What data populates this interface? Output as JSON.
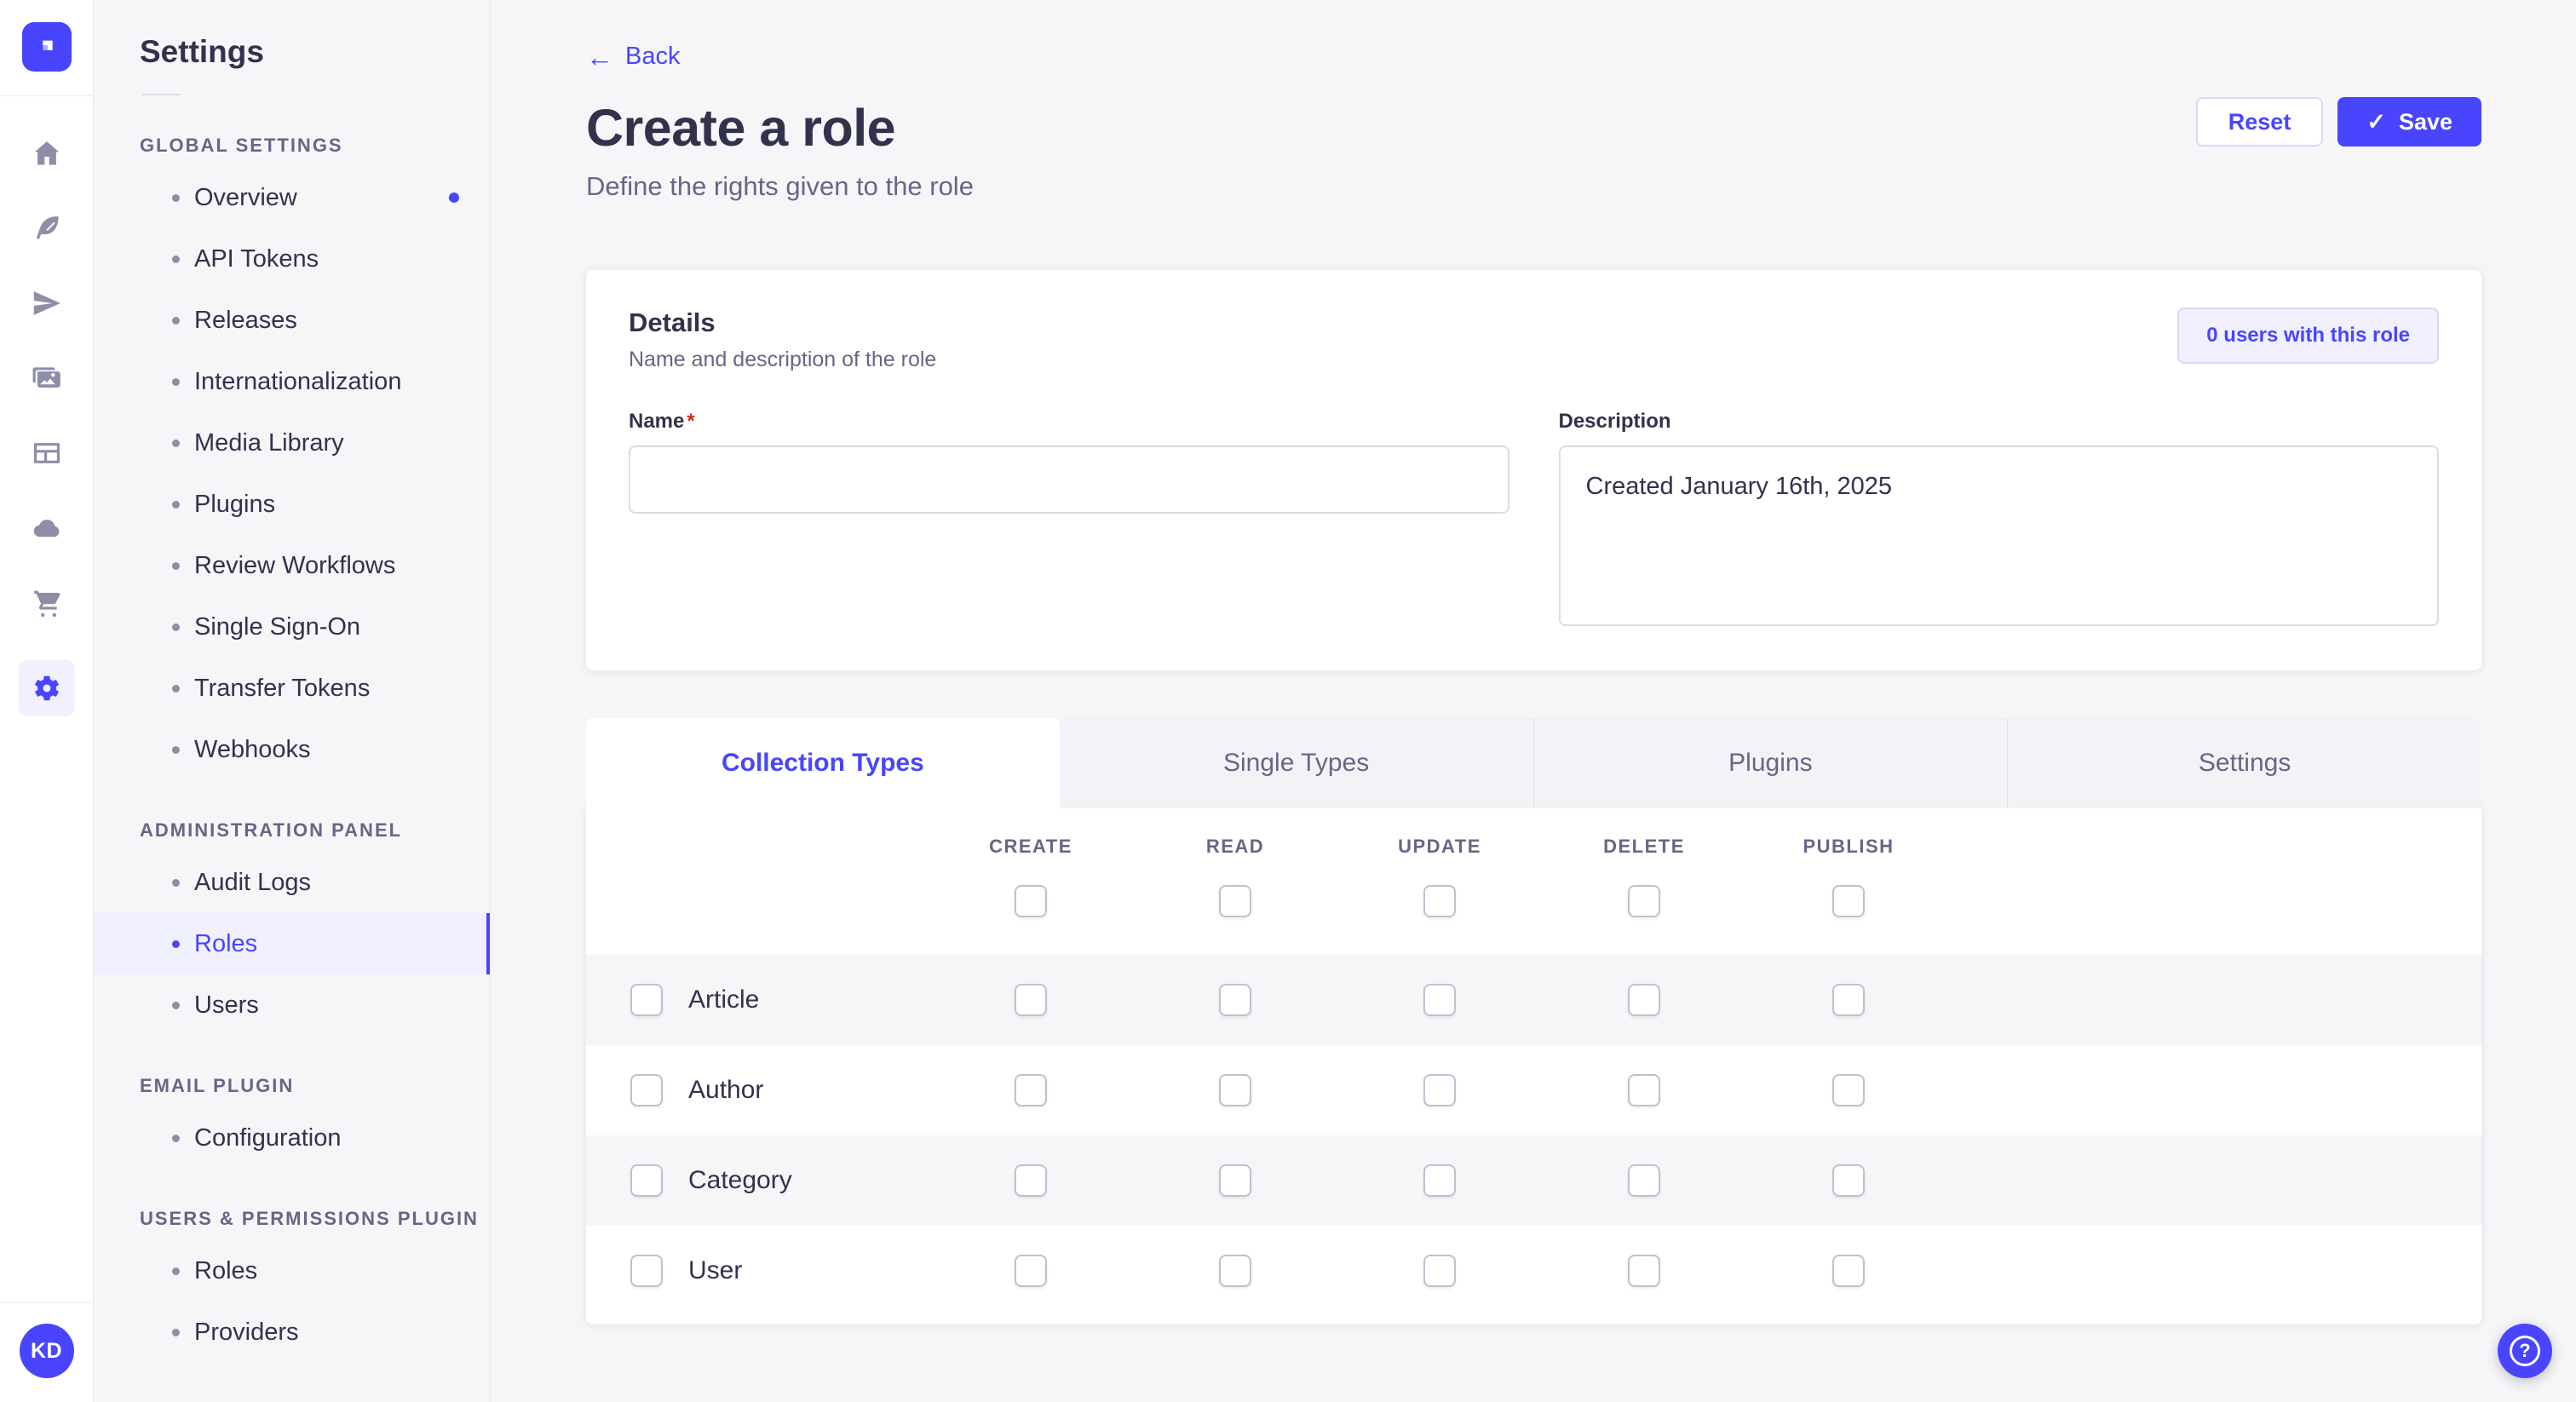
{
  "colors": {
    "accent": "#4945ff",
    "accent_light_bg": "#f0f0ff",
    "accent_border": "#d9d8ff",
    "text_dark": "#32324d",
    "text_gray": "#666687",
    "icon_gray": "#8e8ea9",
    "page_bg": "#f6f6f9",
    "required_red": "#d02b20"
  },
  "iconbar": {
    "icons": [
      "home-icon",
      "content-manager-icon",
      "releases-icon",
      "media-library-icon",
      "content-type-builder-icon",
      "cloud-icon",
      "marketplace-icon",
      "settings-icon"
    ],
    "active_icon": "settings-icon",
    "avatar_initials": "KD"
  },
  "sidebar": {
    "title": "Settings",
    "sections": [
      {
        "label": "GLOBAL SETTINGS",
        "items": [
          {
            "label": "Overview",
            "notification": true
          },
          {
            "label": "API Tokens"
          },
          {
            "label": "Releases"
          },
          {
            "label": "Internationalization"
          },
          {
            "label": "Media Library"
          },
          {
            "label": "Plugins"
          },
          {
            "label": "Review Workflows"
          },
          {
            "label": "Single Sign-On"
          },
          {
            "label": "Transfer Tokens"
          },
          {
            "label": "Webhooks"
          }
        ]
      },
      {
        "label": "ADMINISTRATION PANEL",
        "items": [
          {
            "label": "Audit Logs"
          },
          {
            "label": "Roles",
            "active": true
          },
          {
            "label": "Users"
          }
        ]
      },
      {
        "label": "EMAIL PLUGIN",
        "items": [
          {
            "label": "Configuration"
          }
        ]
      },
      {
        "label": "USERS & PERMISSIONS PLUGIN",
        "items": [
          {
            "label": "Roles"
          },
          {
            "label": "Providers"
          }
        ]
      }
    ]
  },
  "header": {
    "back_label": "Back",
    "back_arrow": "←",
    "title": "Create a role",
    "subtitle": "Define the rights given to the role",
    "reset_label": "Reset",
    "save_label": "Save",
    "save_check": "✓"
  },
  "details": {
    "title": "Details",
    "subtitle": "Name and description of the role",
    "users_badge": "0 users with this role",
    "name_label": "Name",
    "required_mark": "*",
    "name_value": "",
    "description_label": "Description",
    "description_value": "Created January 16th, 2025"
  },
  "permissions": {
    "tabs": [
      {
        "label": "Collection Types",
        "active": true
      },
      {
        "label": "Single Types",
        "active": false
      },
      {
        "label": "Plugins",
        "active": false
      },
      {
        "label": "Settings",
        "active": false
      }
    ],
    "columns": [
      "CREATE",
      "READ",
      "UPDATE",
      "DELETE",
      "PUBLISH"
    ],
    "global_checks": [
      false,
      false,
      false,
      false,
      false
    ],
    "rows": [
      {
        "label": "Article",
        "selected": false,
        "checks": [
          false,
          false,
          false,
          false,
          false
        ]
      },
      {
        "label": "Author",
        "selected": false,
        "checks": [
          false,
          false,
          false,
          false,
          false
        ]
      },
      {
        "label": "Category",
        "selected": false,
        "checks": [
          false,
          false,
          false,
          false,
          false
        ]
      },
      {
        "label": "User",
        "selected": false,
        "checks": [
          false,
          false,
          false,
          false,
          false
        ]
      }
    ]
  },
  "help": {
    "label": "?"
  }
}
